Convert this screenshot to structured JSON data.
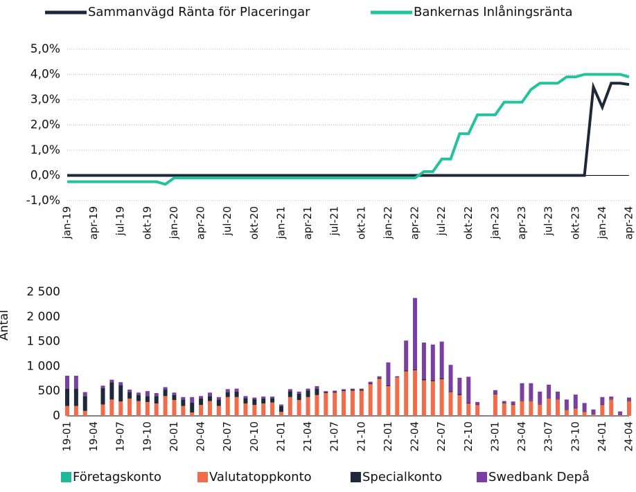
{
  "chart_data": [
    {
      "type": "line",
      "legend": "top",
      "grid": true,
      "categories": [
        "jan-19",
        null,
        null,
        "apr-19",
        null,
        null,
        "jul-19",
        null,
        null,
        "okt-19",
        null,
        null,
        "jan-20",
        null,
        null,
        "apr-20",
        null,
        null,
        "jul-20",
        null,
        null,
        "okt-20",
        null,
        null,
        "jan-21",
        null,
        null,
        "apr-21",
        null,
        null,
        "jul-21",
        null,
        null,
        "okt-21",
        null,
        null,
        "jan-22",
        null,
        null,
        "apr-22",
        null,
        null,
        "jul-22",
        null,
        null,
        "okt-22",
        null,
        null,
        "jan-23",
        null,
        null,
        "apr-23",
        null,
        null,
        "jul-23",
        null,
        null,
        "okt-23",
        null,
        null,
        "jan-24",
        null,
        null,
        "apr-24"
      ],
      "series": [
        {
          "name": "Sammanvägd Ränta för Placeringar",
          "color": "#1d2838",
          "values": [
            0,
            0,
            0,
            0,
            0,
            0,
            0,
            0,
            0,
            0,
            0,
            0,
            0,
            0,
            0,
            0,
            0,
            0,
            0,
            0,
            0,
            0,
            0,
            0,
            0,
            0,
            0,
            0,
            0,
            0,
            0,
            0,
            0,
            0,
            0,
            0,
            0,
            0,
            0,
            0,
            0,
            0,
            0,
            0,
            0,
            0,
            0,
            0,
            0,
            0,
            0,
            0,
            0,
            0,
            0,
            0,
            0,
            0,
            0,
            3.5,
            2.7,
            3.65,
            3.65,
            3.6
          ]
        },
        {
          "name": "Bankernas Inlåningsränta",
          "color": "#22c39c",
          "values": [
            -0.25,
            -0.25,
            -0.25,
            -0.25,
            -0.25,
            -0.25,
            -0.25,
            -0.25,
            -0.25,
            -0.25,
            -0.25,
            -0.35,
            -0.1,
            -0.1,
            -0.1,
            -0.1,
            -0.1,
            -0.1,
            -0.1,
            -0.1,
            -0.1,
            -0.1,
            -0.1,
            -0.1,
            -0.1,
            -0.1,
            -0.1,
            -0.1,
            -0.1,
            -0.1,
            -0.1,
            -0.1,
            -0.1,
            -0.1,
            -0.1,
            -0.1,
            -0.1,
            -0.1,
            -0.1,
            -0.1,
            0.15,
            0.15,
            0.65,
            0.65,
            1.65,
            1.65,
            2.4,
            2.4,
            2.4,
            2.9,
            2.9,
            2.9,
            3.4,
            3.65,
            3.65,
            3.65,
            3.9,
            3.9,
            4,
            4,
            4,
            4,
            4,
            3.9
          ]
        }
      ],
      "ylim": [
        -1,
        5
      ],
      "yticks": [
        {
          "value": -1,
          "label": "-1,0%"
        },
        {
          "value": 0,
          "label": "0,0%"
        },
        {
          "value": 1,
          "label": "1,0%"
        },
        {
          "value": 2,
          "label": "2,0%"
        },
        {
          "value": 3,
          "label": "3,0%"
        },
        {
          "value": 4,
          "label": "4,0%"
        },
        {
          "value": 5,
          "label": "5,0%"
        }
      ]
    },
    {
      "type": "bar",
      "stacked": true,
      "legend": "bottom",
      "grid": false,
      "y_label": "Antal",
      "categories": [
        "19-01",
        null,
        null,
        "19-04",
        null,
        null,
        "19-07",
        null,
        null,
        "19-10",
        null,
        null,
        "20-01",
        null,
        null,
        "20-04",
        null,
        null,
        "20-07",
        null,
        null,
        "20-10",
        null,
        null,
        "21-01",
        null,
        null,
        "21-04",
        null,
        null,
        "21-07",
        null,
        null,
        "21-10",
        null,
        null,
        "22-01",
        null,
        null,
        "22-04",
        null,
        null,
        "22-07",
        null,
        null,
        "22-10",
        null,
        null,
        "23-01",
        null,
        null,
        "23-04",
        null,
        null,
        "23-07",
        null,
        null,
        "23-10",
        null,
        null,
        "24-01",
        null,
        null,
        "24-04"
      ],
      "series": [
        {
          "name": "Företagskonto",
          "color": "#1fb995",
          "values": [
            0,
            0,
            0,
            0,
            0,
            0,
            0,
            0,
            0,
            0,
            0,
            0,
            0,
            0,
            0,
            0,
            0,
            0,
            0,
            0,
            0,
            0,
            0,
            0,
            0,
            0,
            0,
            0,
            0,
            0,
            0,
            0,
            0,
            0,
            0,
            0,
            0,
            0,
            0,
            0,
            0,
            0,
            0,
            0,
            0,
            0,
            0,
            0,
            0,
            0,
            0,
            0,
            0,
            0,
            0,
            0,
            0,
            0,
            0,
            0,
            0,
            0,
            0,
            0
          ]
        },
        {
          "name": "Valutatoppkonto",
          "color": "#f26b4b",
          "values": [
            200,
            200,
            100,
            0,
            230,
            330,
            290,
            350,
            300,
            280,
            250,
            400,
            320,
            200,
            70,
            220,
            300,
            200,
            380,
            380,
            250,
            220,
            250,
            270,
            80,
            380,
            320,
            380,
            420,
            460,
            470,
            500,
            510,
            510,
            640,
            750,
            600,
            780,
            900,
            920,
            720,
            700,
            740,
            480,
            420,
            250,
            220,
            0,
            430,
            250,
            220,
            300,
            300,
            230,
            350,
            330,
            120,
            150,
            80,
            30,
            220,
            330,
            20,
            300
          ]
        },
        {
          "name": "Specialkonto",
          "color": "#1e2a3a",
          "values": [
            350,
            350,
            300,
            0,
            330,
            350,
            330,
            130,
            120,
            120,
            150,
            130,
            100,
            130,
            200,
            130,
            100,
            130,
            100,
            110,
            110,
            120,
            100,
            90,
            120,
            120,
            130,
            130,
            130,
            20,
            20,
            20,
            20,
            20,
            20,
            20,
            20,
            10,
            20,
            20,
            20,
            20,
            20,
            20,
            20,
            20,
            10,
            0,
            10,
            10,
            10,
            10,
            10,
            10,
            10,
            10,
            10,
            10,
            10,
            10,
            10,
            10,
            10,
            10
          ]
        },
        {
          "name": "Swedbank Depå",
          "color": "#7b3fa1",
          "values": [
            260,
            260,
            80,
            0,
            50,
            50,
            60,
            50,
            50,
            100,
            60,
            50,
            50,
            50,
            110,
            50,
            70,
            50,
            60,
            60,
            40,
            30,
            40,
            30,
            30,
            40,
            40,
            40,
            50,
            20,
            20,
            20,
            20,
            20,
            30,
            30,
            460,
            10,
            600,
            1440,
            740,
            720,
            740,
            530,
            330,
            520,
            50,
            0,
            80,
            40,
            60,
            350,
            350,
            250,
            270,
            150,
            200,
            270,
            170,
            90,
            150,
            50,
            60,
            60
          ]
        }
      ],
      "ylim": [
        0,
        2500
      ],
      "yticks": [
        0,
        500,
        {
          "value": 1000,
          "label": "1 000"
        },
        {
          "value": 1500,
          "label": "1 500"
        },
        {
          "value": 2000,
          "label": "2 000"
        },
        {
          "value": 2500,
          "label": "2 500"
        }
      ]
    }
  ]
}
